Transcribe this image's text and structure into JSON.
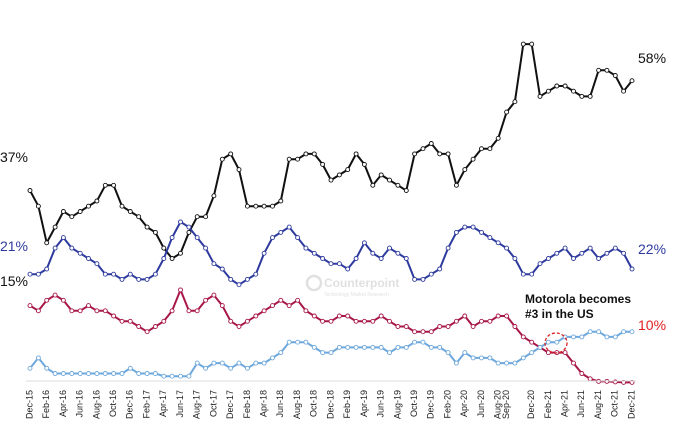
{
  "chart_data": {
    "type": "line",
    "title": "",
    "xlabel": "",
    "ylabel": "",
    "ylim": [
      0,
      70
    ],
    "grid": false,
    "legend": "none",
    "x": [
      "Dec-15",
      "Jan-16",
      "Feb-16",
      "Mar-16",
      "Apr-16",
      "May-16",
      "Jun-16",
      "Jul-16",
      "Aug-16",
      "Sep-16",
      "Oct-16",
      "Nov-16",
      "Dec-16",
      "Jan-17",
      "Feb-17",
      "Mar-17",
      "Apr-17",
      "May-17",
      "Jun-17",
      "Jul-17",
      "Aug-17",
      "Sep-17",
      "Oct-17",
      "Nov-17",
      "Dec-17",
      "Jan-18",
      "Feb-18",
      "Mar-18",
      "Apr-18",
      "May-18",
      "Jun-18",
      "Jul-18",
      "Aug-18",
      "Sep-18",
      "Oct-18",
      "Nov-18",
      "Dec-18",
      "Jan-19",
      "Feb-19",
      "Mar-19",
      "Apr-19",
      "May-19",
      "Jun-19",
      "Jul-19",
      "Aug-19",
      "Sep-19",
      "Oct-19",
      "Nov-19",
      "Dec-19",
      "Jan-20",
      "Feb-20",
      "Mar-20",
      "Apr-20",
      "May-20",
      "Jun-20",
      "Jul-20",
      "Aug-20",
      "Sep-20",
      "Oct-20",
      "Nov-20",
      "Dec-20",
      "Jan-21",
      "Feb-21",
      "Mar-21",
      "Apr-21",
      "May-21",
      "Jun-21",
      "Jul-21",
      "Aug-21",
      "Sep-21",
      "Oct-21",
      "Nov-21",
      "Dec-21"
    ],
    "x_tick_labels": [
      "Dec-15",
      "Feb-16",
      "Apr-16",
      "Jun-16",
      "Aug-16",
      "Oct-16",
      "Dec-16",
      "Feb-17",
      "Apr-17",
      "Jun-17",
      "Aug-17",
      "Oct-17",
      "Dec-17",
      "Feb-18",
      "Apr-18",
      "Jun-18",
      "Aug-18",
      "Oct-18",
      "Dec-18",
      "Feb-19",
      "Apr-19",
      "Jun-19",
      "Aug-19",
      "Oct-19",
      "Dec-19",
      "Feb-20",
      "Apr-20",
      "Jun-20",
      "Aug-20",
      "Sep-20",
      "Dec-20",
      "Feb-21",
      "Apr-21",
      "Jun-21",
      "Aug-21",
      "Oct-21",
      "Dec-21"
    ],
    "series": [
      {
        "color": "#111111",
        "start_label": "37%",
        "end_label": "58%",
        "values": [
          37,
          34,
          27,
          30,
          33,
          32,
          33,
          34,
          35,
          38,
          38,
          34,
          33,
          32,
          30,
          29,
          26,
          24,
          25,
          29,
          32,
          32,
          36,
          43,
          44,
          41,
          34,
          34,
          34,
          34,
          35,
          43,
          43,
          44,
          44,
          42,
          39,
          40,
          41,
          44,
          42,
          38,
          40,
          39,
          38,
          37,
          44,
          45,
          46,
          44,
          44,
          38,
          41,
          43,
          45,
          45,
          47,
          52,
          54,
          65,
          65,
          55,
          56,
          57,
          57,
          56,
          55,
          55,
          60,
          60,
          59,
          56,
          58
        ]
      },
      {
        "color": "#2e3a9e",
        "start_label": "21%",
        "end_label": "22%",
        "values": [
          21,
          21,
          22,
          26,
          28,
          26,
          25,
          24,
          23,
          21,
          21,
          20,
          21,
          20,
          20,
          21,
          24,
          28,
          31,
          30,
          28,
          26,
          23,
          22,
          20,
          19,
          20,
          21,
          25,
          28,
          29,
          30,
          28,
          26,
          25,
          24,
          23,
          23,
          22,
          24,
          27,
          25,
          24,
          26,
          25,
          24,
          20,
          20,
          21,
          22,
          26,
          29,
          30,
          30,
          29,
          28,
          27,
          26,
          24,
          21,
          21,
          23,
          24,
          25,
          26,
          24,
          25,
          26,
          24,
          25,
          26,
          25,
          22
        ]
      },
      {
        "color": "#a8174a",
        "start_label": "15%",
        "end_label": "",
        "values": [
          15,
          14,
          16,
          17,
          16,
          14,
          14,
          15,
          14,
          14,
          13,
          12,
          12,
          11,
          10,
          11,
          12,
          14,
          18,
          14,
          14,
          16,
          17,
          15,
          12,
          11,
          12,
          13,
          14,
          15,
          16,
          15,
          16,
          14,
          13,
          12,
          12,
          13,
          13,
          12,
          12,
          12,
          13,
          12,
          11,
          11,
          10,
          10,
          10,
          11,
          11,
          12,
          13,
          11,
          12,
          12,
          13,
          13,
          11,
          9,
          8,
          7,
          6,
          6,
          6,
          4,
          2,
          1,
          0.5,
          0.5,
          0.4,
          0.3,
          0.3
        ]
      },
      {
        "color": "#6ea8dc",
        "start_label": "",
        "end_label": "10%",
        "values": [
          3,
          5,
          3,
          2,
          2,
          2,
          2,
          2,
          2,
          2,
          2,
          2,
          3,
          2,
          2,
          2,
          1.5,
          1.5,
          1.5,
          1.5,
          4,
          3,
          4,
          4,
          3,
          4,
          3,
          4,
          4,
          5,
          6,
          8,
          8,
          8,
          7,
          6,
          6,
          7,
          7,
          7,
          7,
          7,
          7,
          6,
          7,
          7,
          8,
          8,
          7,
          7,
          6,
          4,
          6,
          5,
          5,
          5,
          4,
          4,
          4,
          5,
          6,
          7,
          8,
          8,
          9,
          9,
          9,
          10,
          10,
          9,
          9,
          10,
          10
        ]
      }
    ],
    "annotations": [
      {
        "text": "Motorola becomes",
        "x": "Mar-21",
        "y": 12
      },
      {
        "text": "#3 in the US",
        "x": "Mar-21",
        "y": 12
      }
    ],
    "start_label_colors": [
      "#111111",
      "#2e3a9e",
      "#111111",
      "#e02020"
    ],
    "end_label_colors": [
      "#111111",
      "#2e3a9e",
      "#111111",
      "#e02020"
    ],
    "watermark": {
      "title": "Counterpoint",
      "subtitle": "Technology Market Research"
    }
  }
}
